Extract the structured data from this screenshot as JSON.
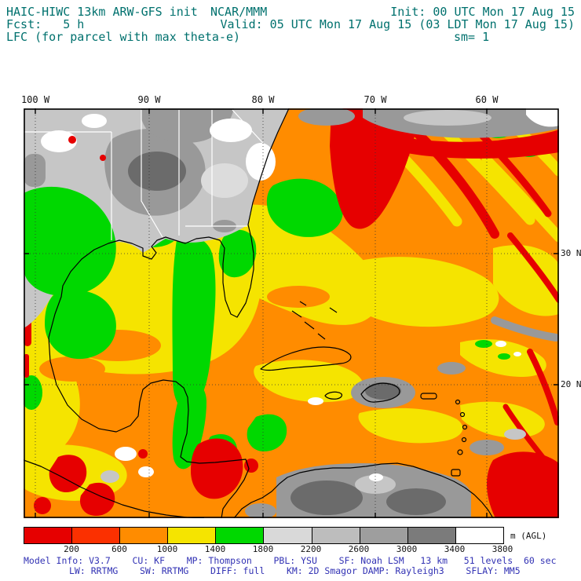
{
  "header": {
    "title": "HAIC-HIWC 13km ARW-GFS init",
    "org": "NCAR/MMM",
    "init": "Init: 00 UTC Mon 17 Aug 15",
    "fcst": "Fcst:   5 h",
    "valid": "Valid: 05 UTC Mon 17 Aug 15 (03 LDT Mon 17 Aug 15)",
    "field": "LFC (for parcel with max theta-e)",
    "sm": "sm= 1"
  },
  "map": {
    "x_ticks": [
      "100 W",
      "90 W",
      "80 W",
      "70 W",
      "60 W"
    ],
    "y_ticks": [
      "30 N",
      "20 N"
    ]
  },
  "colorbar": {
    "labels": [
      "200",
      "600",
      "1000",
      "1400",
      "1800",
      "2200",
      "2600",
      "3000",
      "3400",
      "3800"
    ],
    "unit": "m (AGL)",
    "colors": [
      "#e60000",
      "#fb3000",
      "#ff8c00",
      "#f5e400",
      "#00d800",
      "#d9d9d9",
      "#bdbdbd",
      "#9e9e9e",
      "#7b7b7b",
      "#ffffff"
    ]
  },
  "footer": {
    "line1": "Model Info: V3.7    CU: KF    MP: Thompson    PBL: YSU    SF: Noah LSM   13 km   51 levels  60 sec",
    "line2": "LW: RRTMG    SW: RRTMG    DIFF: full    KM: 2D Smagor DAMP: Rayleigh3    SFLAY: MM5"
  },
  "chart_data": {
    "type": "heatmap",
    "title": "LFC (for parcel with max theta-e)",
    "units": "m (AGL)",
    "init": "00 UTC Mon 17 Aug 15",
    "valid": "05 UTC Mon 17 Aug 15 (03 LDT Mon 17 Aug 15)",
    "levels": [
      200,
      600,
      1000,
      1400,
      1800,
      2200,
      2600,
      3000,
      3400,
      3800
    ],
    "level_colors": [
      "#e60000",
      "#fb3000",
      "#ff8c00",
      "#f5e400",
      "#00d800",
      "#d9d9d9",
      "#bdbdbd",
      "#9e9e9e",
      "#7b7b7b",
      "#ffffff"
    ],
    "x_axis": {
      "ticks": [
        "100 W",
        "90 W",
        "80 W",
        "70 W",
        "60 W"
      ]
    },
    "y_axis": {
      "ticks": [
        "30 N",
        "20 N"
      ]
    },
    "legend_position": "bottom"
  }
}
